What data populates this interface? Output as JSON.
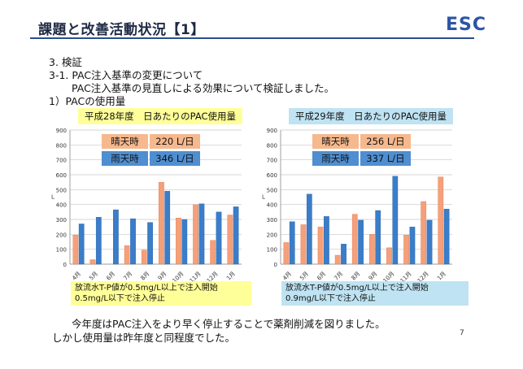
{
  "header": {
    "title": "課題と改善活動状況【1】",
    "logo": "ESC"
  },
  "body_text": {
    "section": "3. 検証",
    "subsection": "3-1. PAC注入基準の変更について",
    "description": "PAC注入基準の見直しによる効果について検証しました。",
    "item": "1）PACの使用量"
  },
  "chart_data": [
    {
      "type": "bar",
      "title": "平成28年度　日あたりのPAC使用量",
      "categories": [
        "4月",
        "5月",
        "6月",
        "7月",
        "8月",
        "9月",
        "10月",
        "11月",
        "12月",
        "1月"
      ],
      "ylabel": "L",
      "ylim": [
        0,
        900
      ],
      "yticks": [
        0,
        100,
        200,
        300,
        400,
        500,
        600,
        700,
        800,
        900
      ],
      "grid": true,
      "series": [
        {
          "values": [
            195,
            30,
            0,
            125,
            95,
            550,
            310,
            400,
            160,
            330
          ],
          "color": "#f4a07a"
        },
        {
          "values": [
            270,
            315,
            365,
            305,
            280,
            490,
            300,
            405,
            350,
            385
          ],
          "color": "#3a7dc9"
        }
      ],
      "legend_table": {
        "position": "top-center",
        "rows": [
          {
            "label": "晴天時",
            "value": "220 L/日",
            "color": "#f6b88d"
          },
          {
            "label": "雨天時",
            "value": "346 L/日",
            "color": "#4f8ed0"
          }
        ]
      },
      "note": [
        "放流水T-P値が0.5mg/L以上で注入開始",
        "0.5mg/L以下で注入停止"
      ]
    },
    {
      "type": "bar",
      "title": "平成29年度　日あたりのPAC使用量",
      "categories": [
        "4月",
        "5月",
        "6月",
        "7月",
        "8月",
        "9月",
        "10月",
        "11月",
        "12月",
        "1月"
      ],
      "ylabel": "L",
      "ylim": [
        0,
        900
      ],
      "yticks": [
        0,
        100,
        200,
        300,
        400,
        500,
        600,
        700,
        800,
        900
      ],
      "grid": true,
      "series": [
        {
          "values": [
            145,
            265,
            250,
            60,
            335,
            200,
            110,
            195,
            420,
            585
          ],
          "color": "#f4a07a"
        },
        {
          "values": [
            285,
            470,
            320,
            135,
            295,
            360,
            590,
            250,
            295,
            370
          ],
          "color": "#3a7dc9"
        }
      ],
      "legend_table": {
        "position": "top-center",
        "rows": [
          {
            "label": "晴天時",
            "value": "256 L/日",
            "color": "#f6b88d"
          },
          {
            "label": "雨天時",
            "value": "337 L/日",
            "color": "#4f8ed0"
          }
        ]
      },
      "note": [
        "放流水T-P値が0.5mg/L以上で注入開始",
        "0.9mg/L以下で注入停止"
      ]
    }
  ],
  "conclusion": [
    "今年度はPAC注入をより早く停止することで薬剤削減を図りました。",
    "しかし使用量は昨年度と同程度でした。"
  ],
  "page_number": "7"
}
